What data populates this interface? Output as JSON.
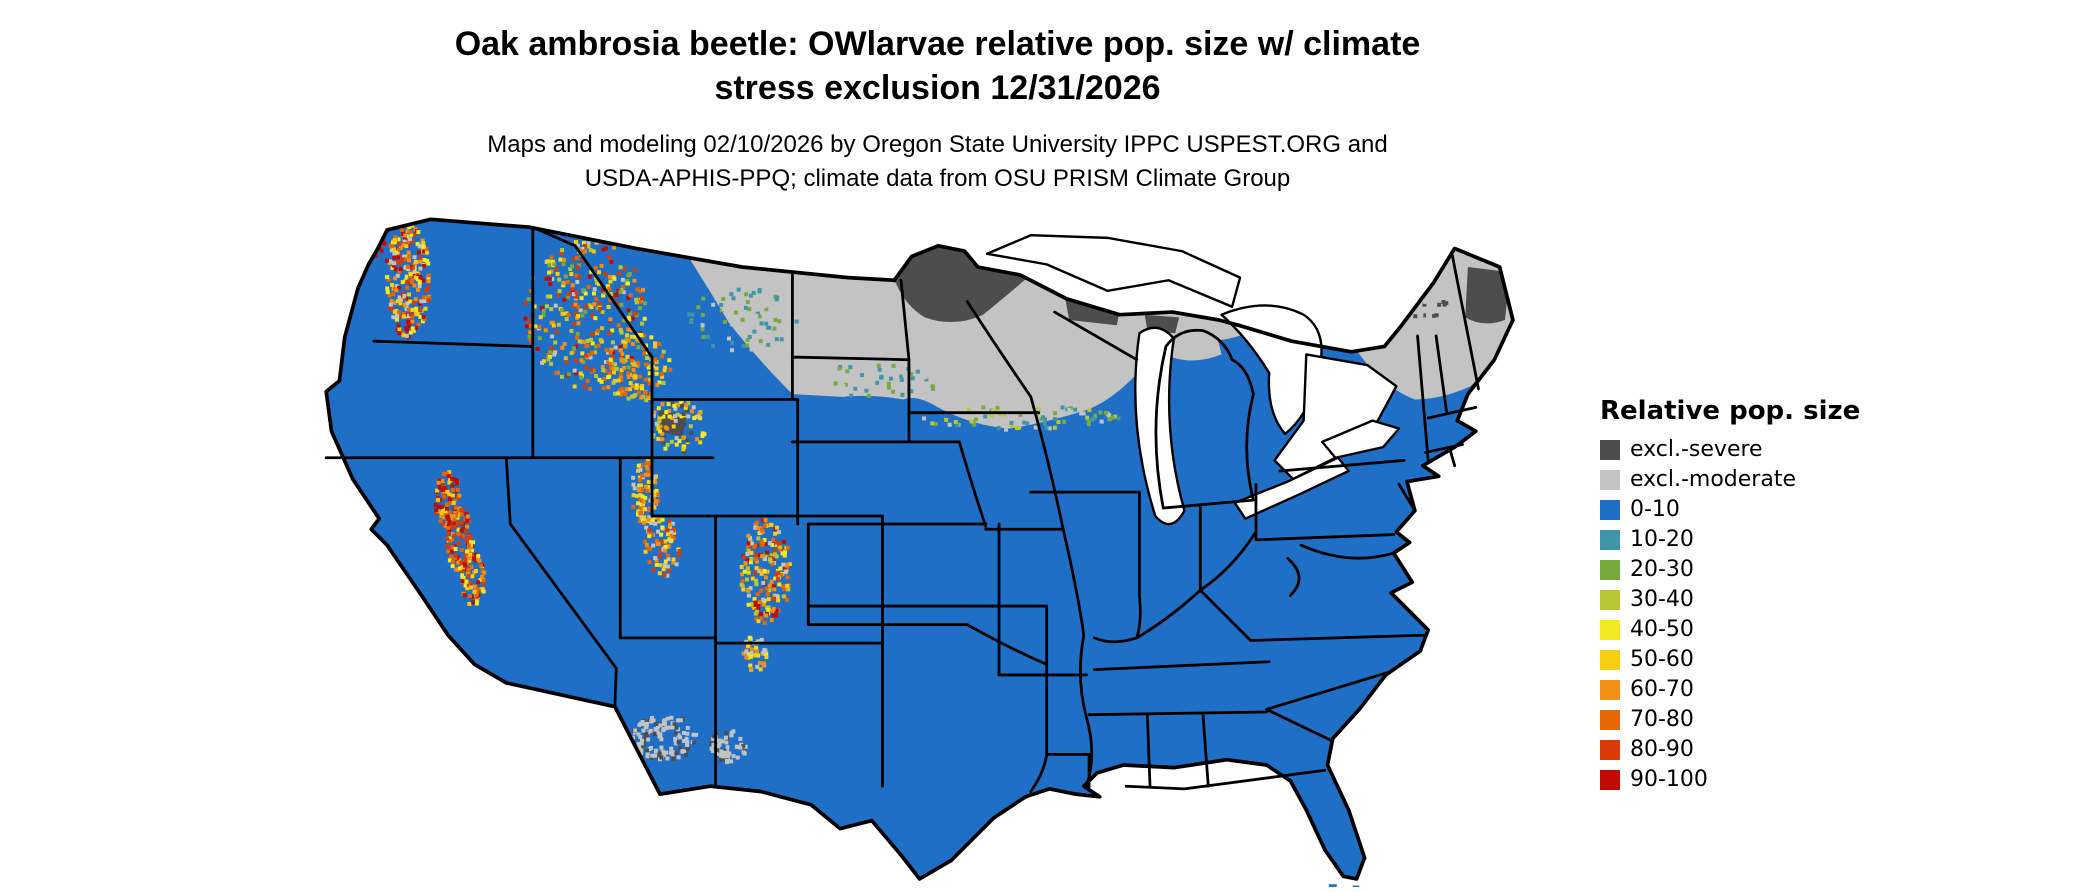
{
  "title": {
    "line1": "Oak ambrosia beetle: OWlarvae relative pop. size w/ climate",
    "line2": "stress exclusion 12/31/2026"
  },
  "subtitle": {
    "line1": "Maps and modeling 02/10/2026 by Oregon State University IPPC USPEST.ORG and",
    "line2": "USDA-APHIS-PPQ; climate data from OSU PRISM Climate Group"
  },
  "legend": {
    "title": "Relative pop. size",
    "items": [
      {
        "key": "severe",
        "label": "excl.-severe",
        "color": "#4d4d4d"
      },
      {
        "key": "moderate",
        "label": "excl.-moderate",
        "color": "#c3c3c3"
      },
      {
        "key": "b0",
        "label": "0-10",
        "color": "#1e6fc5"
      },
      {
        "key": "b10",
        "label": "10-20",
        "color": "#3e96a8"
      },
      {
        "key": "b20",
        "label": "20-30",
        "color": "#77aa3d"
      },
      {
        "key": "b30",
        "label": "30-40",
        "color": "#b9c832"
      },
      {
        "key": "b40",
        "label": "40-50",
        "color": "#f2ea20"
      },
      {
        "key": "b50",
        "label": "50-60",
        "color": "#f7cf0e"
      },
      {
        "key": "b60",
        "label": "60-70",
        "color": "#f29016"
      },
      {
        "key": "b70",
        "label": "70-80",
        "color": "#e66708"
      },
      {
        "key": "b80",
        "label": "80-90",
        "color": "#da3b04"
      },
      {
        "key": "b90",
        "label": "90-100",
        "color": "#c00a02"
      }
    ]
  },
  "map": {
    "base_fill_key": "b0",
    "background": "#ffffff",
    "border_color": "#000000"
  }
}
